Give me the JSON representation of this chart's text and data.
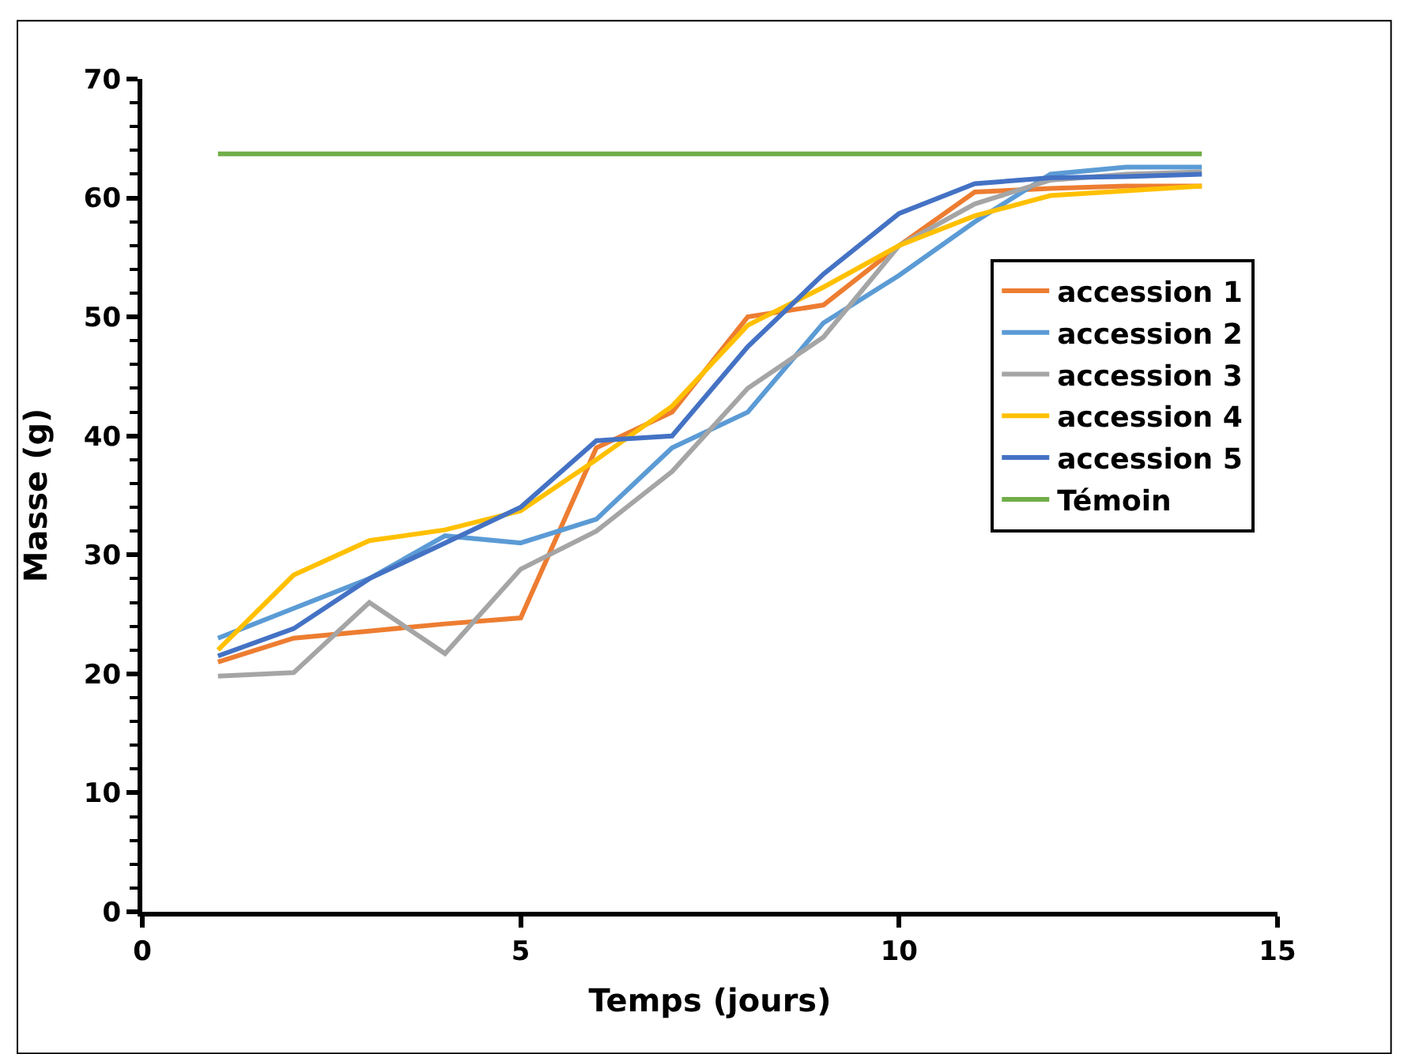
{
  "chart_data": {
    "type": "line",
    "xlabel": "Temps (jours)",
    "ylabel": "Masse (g)",
    "x": [
      1,
      2,
      3,
      4,
      5,
      6,
      7,
      8,
      9,
      10,
      11,
      12,
      13,
      14
    ],
    "series": [
      {
        "name": "accession 1",
        "color": "#ed7d31",
        "values": [
          21,
          23,
          23.6,
          24.2,
          24.7,
          39,
          42,
          50,
          51,
          56,
          60.5,
          60.8,
          61,
          61
        ]
      },
      {
        "name": "accession 2",
        "color": "#5b9bd5",
        "values": [
          23,
          25.5,
          28,
          31.6,
          31,
          33,
          39,
          42,
          49.5,
          53.5,
          58,
          62,
          62.6,
          62.6
        ]
      },
      {
        "name": "accession 3",
        "color": "#a5a5a5",
        "values": [
          19.8,
          20.1,
          26,
          21.7,
          28.8,
          32,
          37,
          44,
          48.3,
          56,
          59.5,
          61.5,
          62,
          62.2
        ]
      },
      {
        "name": "accession 4",
        "color": "#ffc000",
        "values": [
          22,
          28.3,
          31.2,
          32.1,
          33.7,
          38,
          42.5,
          49.3,
          52.5,
          56,
          58.5,
          60.2,
          60.6,
          61
        ]
      },
      {
        "name": "accession 5",
        "color": "#4472c4",
        "values": [
          21.5,
          23.8,
          28,
          31,
          34,
          39.6,
          40,
          47.5,
          53.6,
          58.7,
          61.2,
          61.7,
          61.8,
          62
        ]
      },
      {
        "name": "Témoin",
        "color": "#70ad47",
        "values": [
          63.7,
          63.7,
          63.7,
          63.7,
          63.7,
          63.7,
          63.7,
          63.7,
          63.7,
          63.7,
          63.7,
          63.7,
          63.7,
          63.7
        ]
      }
    ],
    "xlim": [
      0,
      15
    ],
    "xticks": [
      0,
      5,
      10,
      15
    ],
    "ylim": [
      0,
      70
    ],
    "yticks": [
      0,
      10,
      20,
      30,
      40,
      50,
      60,
      70
    ],
    "legend": "right",
    "marker": "none",
    "line_style": "solid"
  }
}
